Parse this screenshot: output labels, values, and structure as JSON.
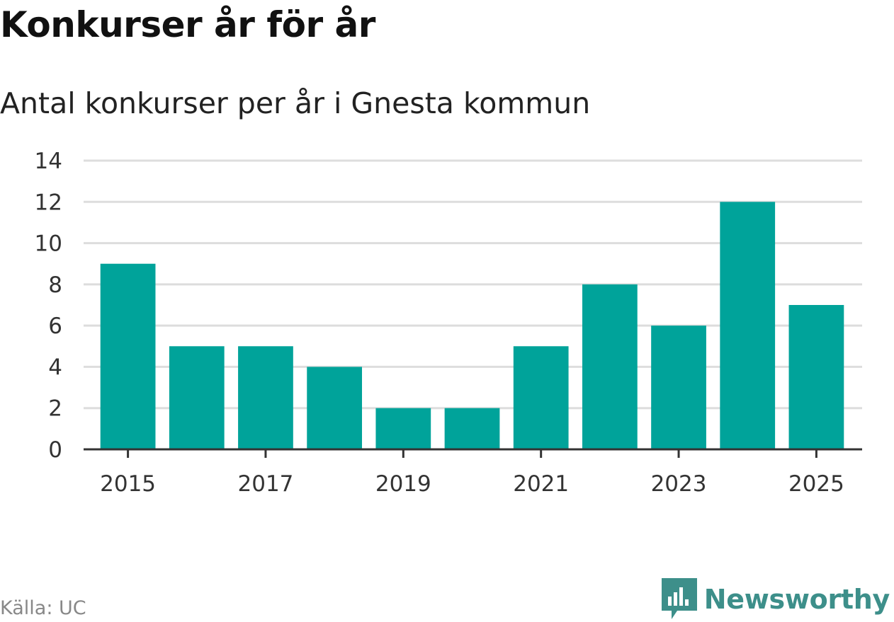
{
  "title": "Konkurser år för år",
  "subtitle": "Antal konkurser per år i Gnesta kommun",
  "source": "Källa: UC",
  "brand": {
    "name": "Newsworthy",
    "icon": "newsworthy-logo-icon",
    "color": "#3d8f8a"
  },
  "colors": {
    "bar": "#00a39a",
    "grid": "#dddddd",
    "axis": "#333333"
  },
  "chart_data": {
    "type": "bar",
    "title": "Konkurser år för år",
    "subtitle": "Antal konkurser per år i Gnesta kommun",
    "xlabel": "",
    "ylabel": "",
    "categories": [
      2015,
      2016,
      2017,
      2018,
      2019,
      2020,
      2021,
      2022,
      2023,
      2024,
      2025
    ],
    "values": [
      9,
      5,
      5,
      4,
      2,
      2,
      5,
      8,
      6,
      12,
      7
    ],
    "ylim": [
      0,
      14
    ],
    "yticks": [
      0,
      2,
      4,
      6,
      8,
      10,
      12,
      14
    ],
    "xtick_labels": [
      "2015",
      "2017",
      "2019",
      "2021",
      "2023",
      "2025"
    ],
    "grid": true,
    "legend": "none"
  }
}
